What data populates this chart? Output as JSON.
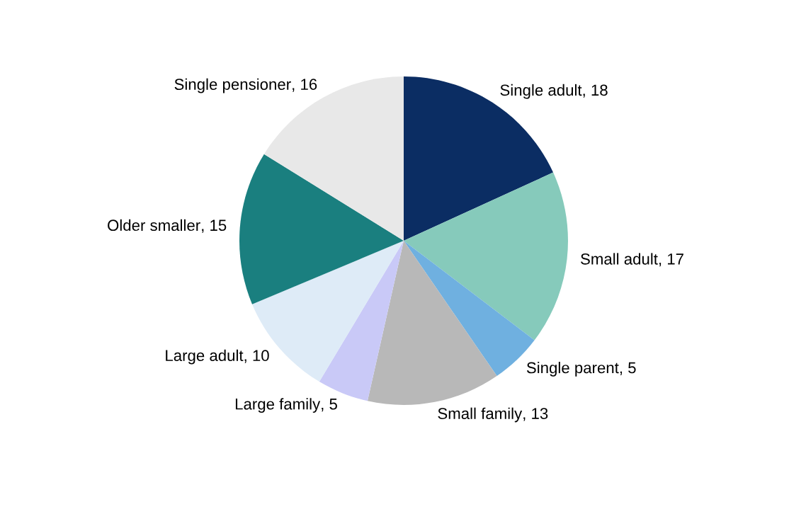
{
  "chart_data": {
    "type": "pie",
    "categories": [
      "Single adult",
      "Small adult",
      "Single parent",
      "Small family",
      "Large family",
      "Large adult",
      "Older smaller",
      "Single pensioner"
    ],
    "values": [
      18,
      17,
      5,
      13,
      5,
      10,
      15,
      16
    ],
    "value_labels": [
      ", 18",
      ", 17",
      ", 5",
      ", 13",
      ", 5",
      ", 10",
      ", 15",
      ", 16"
    ],
    "colors": [
      "#0b2d63",
      "#86cabb",
      "#6fb0e0",
      "#b8b8b8",
      "#c9c9f7",
      "#deebf7",
      "#1a7f7f",
      "#e8e8e8"
    ]
  }
}
